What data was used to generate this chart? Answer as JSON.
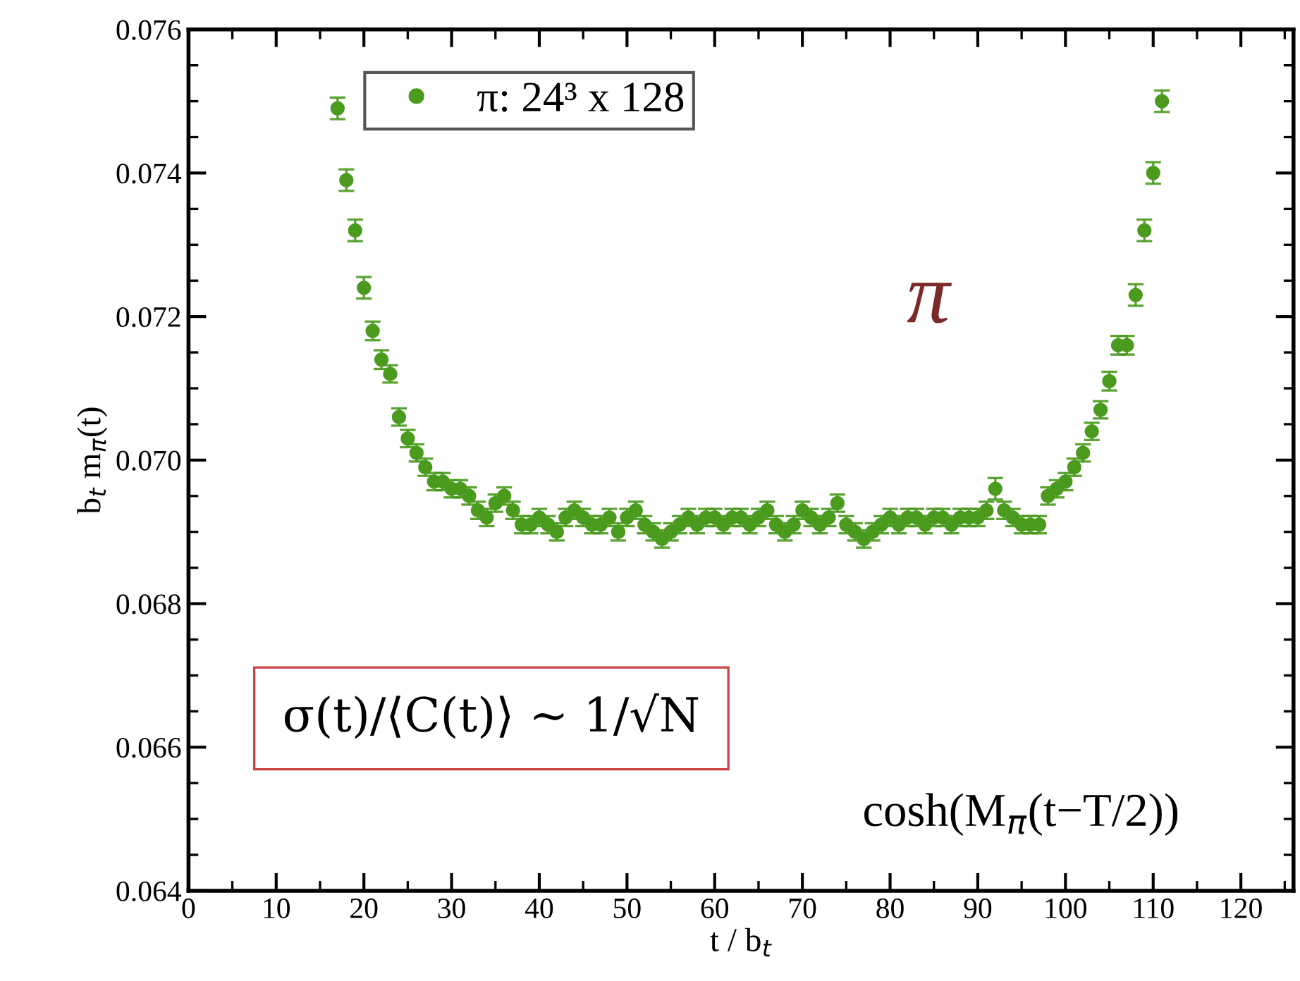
{
  "chart_data": {
    "type": "scatter",
    "xlabel": "t / b$_{t}$",
    "ylabel": "b$_{t}$ m$_{π}$(t)",
    "x": [
      17,
      18,
      19,
      20,
      21,
      22,
      23,
      24,
      25,
      26,
      27,
      28,
      29,
      30,
      31,
      32,
      33,
      34,
      35,
      36,
      37,
      38,
      39,
      40,
      41,
      42,
      43,
      44,
      45,
      46,
      47,
      48,
      49,
      50,
      51,
      52,
      53,
      54,
      55,
      56,
      57,
      58,
      59,
      60,
      61,
      62,
      63,
      64,
      65,
      66,
      67,
      68,
      69,
      70,
      71,
      72,
      73,
      74,
      75,
      76,
      77,
      78,
      79,
      80,
      81,
      82,
      83,
      84,
      85,
      86,
      87,
      88,
      89,
      90,
      91,
      92,
      93,
      94,
      95,
      96,
      97,
      98,
      99,
      100,
      101,
      102,
      103,
      104,
      105,
      106,
      107,
      108,
      109,
      110,
      111
    ],
    "series": [
      {
        "name": "π: 24³ x 128",
        "color": "#4a9a1e",
        "values": [
          0.0749,
          0.0739,
          0.0732,
          0.0724,
          0.0718,
          0.0714,
          0.0712,
          0.0706,
          0.0703,
          0.0701,
          0.0699,
          0.0697,
          0.0697,
          0.0696,
          0.0696,
          0.0695,
          0.0693,
          0.0692,
          0.0694,
          0.0695,
          0.0693,
          0.0691,
          0.0691,
          0.0692,
          0.0691,
          0.069,
          0.0692,
          0.0693,
          0.0692,
          0.0691,
          0.0691,
          0.0692,
          0.069,
          0.0692,
          0.0693,
          0.0691,
          0.069,
          0.0689,
          0.069,
          0.0691,
          0.0692,
          0.0691,
          0.0692,
          0.0692,
          0.0691,
          0.0692,
          0.0692,
          0.0691,
          0.0692,
          0.0693,
          0.0691,
          0.069,
          0.0691,
          0.0693,
          0.0692,
          0.0691,
          0.0692,
          0.0694,
          0.0691,
          0.069,
          0.0689,
          0.069,
          0.0691,
          0.0692,
          0.0691,
          0.0692,
          0.0692,
          0.0691,
          0.0692,
          0.0692,
          0.0691,
          0.0692,
          0.0692,
          0.0692,
          0.0693,
          0.0696,
          0.0693,
          0.0692,
          0.0691,
          0.0691,
          0.0691,
          0.0695,
          0.0696,
          0.0697,
          0.0699,
          0.0701,
          0.0704,
          0.0707,
          0.0711,
          0.0716,
          0.0716,
          0.0723,
          0.0732,
          0.074,
          0.075
        ],
        "errors": [
          0.00015,
          0.00015,
          0.00015,
          0.00015,
          0.00013,
          0.00013,
          0.00012,
          0.00012,
          0.00012,
          0.00012,
          0.00012,
          0.00012,
          0.00012,
          0.00012,
          0.00012,
          0.00012,
          0.00012,
          0.00012,
          0.00012,
          0.00012,
          0.00012,
          0.00012,
          0.00012,
          0.00012,
          0.00012,
          0.00012,
          0.00012,
          0.00012,
          0.00012,
          0.00012,
          0.00012,
          0.00012,
          0.00012,
          0.00012,
          0.00012,
          0.00012,
          0.00012,
          0.00012,
          0.00012,
          0.00012,
          0.00012,
          0.00012,
          0.00012,
          0.00012,
          0.00012,
          0.00012,
          0.00012,
          0.00012,
          0.00012,
          0.00012,
          0.00012,
          0.00012,
          0.00012,
          0.00012,
          0.00012,
          0.00012,
          0.00012,
          0.00012,
          0.00012,
          0.00012,
          0.00012,
          0.00012,
          0.00012,
          0.00012,
          0.00012,
          0.00012,
          0.00012,
          0.00012,
          0.00012,
          0.00012,
          0.00012,
          0.00012,
          0.00012,
          0.00012,
          0.00012,
          0.00015,
          0.00012,
          0.00012,
          0.00012,
          0.00012,
          0.00012,
          0.00012,
          0.00012,
          0.00012,
          0.00012,
          0.00012,
          0.00012,
          0.00012,
          0.00013,
          0.00013,
          0.00013,
          0.00015,
          0.00015,
          0.00015,
          0.00015
        ]
      }
    ],
    "xlim": [
      0,
      126
    ],
    "xticks": [
      0,
      10,
      20,
      30,
      40,
      50,
      60,
      70,
      80,
      90,
      100,
      110,
      120
    ],
    "ylim": [
      0.064,
      0.076
    ],
    "yticks": [
      0.064,
      0.066,
      0.068,
      {
        "value": 0.07,
        "label": "0.070"
      },
      0.072,
      0.074,
      0.076
    ],
    "annotations": [
      "π",
      "σ(t)/⟨C(t)⟩ ~ 1/√N",
      "cosh(M$_{π}$(t−T/2))"
    ],
    "marker": "circle",
    "legend": "top left",
    "grid": false
  }
}
